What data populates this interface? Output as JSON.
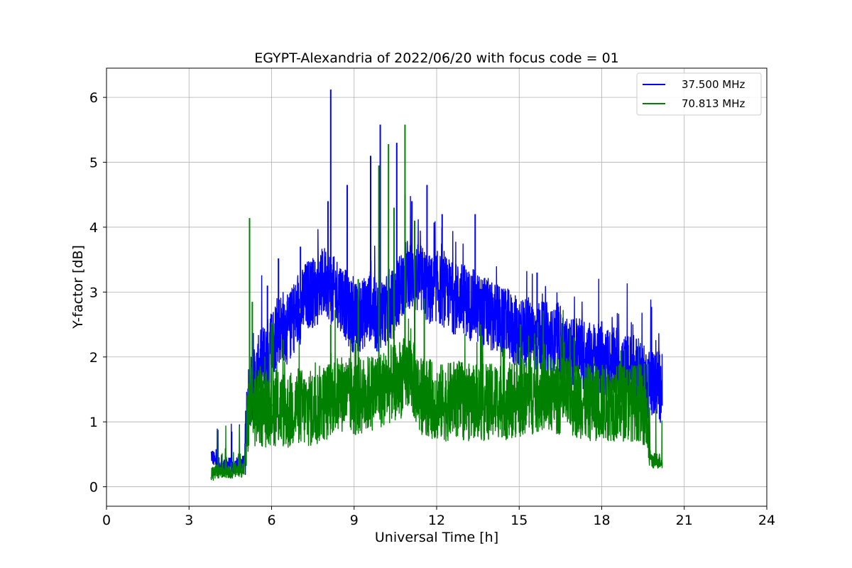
{
  "chart_data": {
    "type": "line",
    "title": "EGYPT-Alexandria of 2022/06/20 with focus code = 01",
    "xlabel": "Universal Time [h]",
    "ylabel": "Y-factor [dB]",
    "xlim": [
      0,
      24
    ],
    "ylim": [
      -0.3,
      6.45
    ],
    "xticks": [
      0,
      3,
      6,
      9,
      12,
      15,
      18,
      21,
      24
    ],
    "yticks": [
      0,
      1,
      2,
      3,
      4,
      5,
      6
    ],
    "grid": true,
    "legend_position": "top-right",
    "series": [
      {
        "name": "37.500 MHz",
        "color": "#0000ff",
        "x": [
          3.8,
          4.0,
          4.2,
          4.4,
          4.6,
          4.8,
          5.0,
          5.2,
          5.4,
          5.6,
          5.8,
          6.0,
          6.2,
          6.4,
          6.6,
          6.8,
          7.0,
          7.2,
          7.4,
          7.6,
          7.8,
          8.0,
          8.2,
          8.4,
          8.6,
          8.8,
          9.0,
          9.2,
          9.4,
          9.6,
          9.8,
          10.0,
          10.2,
          10.4,
          10.6,
          10.8,
          11.0,
          11.2,
          11.4,
          11.6,
          11.8,
          12.0,
          12.2,
          12.4,
          12.6,
          12.8,
          13.0,
          13.2,
          13.4,
          13.6,
          13.8,
          14.0,
          14.2,
          14.4,
          14.6,
          14.8,
          15.0,
          15.2,
          15.4,
          15.6,
          15.8,
          16.0,
          16.2,
          16.4,
          16.6,
          16.8,
          17.0,
          17.2,
          17.4,
          17.6,
          17.8,
          18.0,
          18.2,
          18.4,
          18.6,
          18.8,
          19.0,
          19.2,
          19.4,
          19.6,
          19.8,
          20.0,
          20.2
        ],
        "y": [
          0.5,
          0.35,
          0.3,
          0.35,
          0.3,
          0.35,
          0.4,
          1.5,
          1.6,
          1.9,
          2.0,
          2.2,
          2.4,
          2.5,
          2.4,
          2.6,
          2.7,
          2.9,
          3.0,
          3.0,
          3.1,
          3.2,
          3.0,
          3.0,
          2.9,
          2.7,
          2.6,
          2.6,
          2.7,
          2.8,
          2.6,
          2.7,
          2.7,
          2.8,
          3.0,
          3.2,
          3.3,
          3.2,
          3.2,
          3.1,
          3.0,
          3.1,
          3.0,
          3.0,
          2.9,
          2.9,
          2.9,
          2.8,
          2.8,
          2.7,
          2.7,
          2.6,
          2.6,
          2.5,
          2.5,
          2.4,
          2.4,
          2.4,
          2.3,
          2.3,
          2.3,
          2.3,
          2.2,
          2.2,
          2.1,
          2.0,
          2.1,
          2.1,
          2.0,
          2.0,
          2.0,
          1.9,
          1.9,
          1.9,
          1.9,
          1.8,
          1.8,
          1.8,
          1.7,
          1.6,
          1.6,
          1.6,
          1.5
        ],
        "peaks": [
          [
            8.15,
            6.12
          ],
          [
            9.95,
            5.58
          ],
          [
            10.55,
            5.3
          ],
          [
            9.6,
            5.1
          ],
          [
            8.75,
            4.65
          ],
          [
            11.65,
            4.65
          ],
          [
            8.05,
            4.4
          ],
          [
            11.1,
            4.4
          ],
          [
            13.4,
            4.2
          ],
          [
            12.2,
            4.2
          ],
          [
            6.25,
            3.52
          ],
          [
            5.85,
            3.1
          ],
          [
            7.05,
            3.7
          ],
          [
            15.65,
            3.3
          ],
          [
            18.0,
            2.55
          ],
          [
            18.55,
            2.45
          ],
          [
            19.6,
            1.95
          ],
          [
            4.55,
            0.85
          ],
          [
            5.1,
            1.22
          ]
        ]
      },
      {
        "name": "70.813 MHz",
        "color": "#008000",
        "x": [
          3.8,
          4.0,
          4.2,
          4.4,
          4.6,
          4.8,
          5.0,
          5.2,
          5.4,
          5.6,
          5.8,
          6.0,
          6.2,
          6.4,
          6.6,
          6.8,
          7.0,
          7.2,
          7.4,
          7.6,
          7.8,
          8.0,
          8.2,
          8.4,
          8.6,
          8.8,
          9.0,
          9.2,
          9.4,
          9.6,
          9.8,
          10.0,
          10.2,
          10.4,
          10.6,
          10.8,
          11.0,
          11.2,
          11.4,
          11.6,
          11.8,
          12.0,
          12.2,
          12.4,
          12.6,
          12.8,
          13.0,
          13.2,
          13.4,
          13.6,
          13.8,
          14.0,
          14.2,
          14.4,
          14.6,
          14.8,
          15.0,
          15.2,
          15.4,
          15.6,
          15.8,
          16.0,
          16.2,
          16.4,
          16.6,
          16.8,
          17.0,
          17.2,
          17.4,
          17.6,
          17.8,
          18.0,
          18.2,
          18.4,
          18.6,
          18.8,
          19.0,
          19.2,
          19.4,
          19.6,
          19.8,
          20.0,
          20.2
        ],
        "y": [
          0.2,
          0.22,
          0.25,
          0.25,
          0.25,
          0.25,
          0.28,
          1.3,
          1.2,
          1.2,
          1.2,
          1.25,
          1.2,
          1.2,
          1.15,
          1.2,
          1.25,
          1.2,
          1.2,
          1.2,
          1.3,
          1.3,
          1.4,
          1.4,
          1.45,
          1.4,
          1.35,
          1.4,
          1.4,
          1.45,
          1.5,
          1.5,
          1.55,
          1.6,
          1.6,
          1.7,
          1.8,
          1.6,
          1.4,
          1.4,
          1.35,
          1.3,
          1.3,
          1.3,
          1.35,
          1.35,
          1.3,
          1.3,
          1.35,
          1.3,
          1.3,
          1.3,
          1.35,
          1.35,
          1.3,
          1.35,
          1.35,
          1.4,
          1.4,
          1.4,
          1.45,
          1.45,
          1.4,
          1.4,
          1.4,
          1.4,
          1.35,
          1.35,
          1.3,
          1.3,
          1.3,
          1.3,
          1.3,
          1.3,
          1.3,
          1.3,
          1.3,
          1.3,
          1.3,
          1.2,
          0.4,
          0.4,
          0.4
        ],
        "peaks": [
          [
            5.2,
            4.14
          ],
          [
            10.85,
            5.58
          ],
          [
            10.25,
            5.28
          ],
          [
            9.9,
            4.95
          ],
          [
            10.45,
            4.3
          ],
          [
            10.85,
            4.5
          ],
          [
            11.2,
            4.1
          ],
          [
            9.15,
            3.2
          ],
          [
            6.05,
            2.5
          ],
          [
            8.15,
            2.5
          ],
          [
            11.55,
            2.9
          ],
          [
            13.6,
            2.5
          ],
          [
            15.05,
            2.5
          ],
          [
            17.0,
            2.3
          ],
          [
            18.7,
            2.1
          ],
          [
            19.55,
            1.9
          ],
          [
            5.3,
            2.85
          ]
        ]
      }
    ]
  }
}
